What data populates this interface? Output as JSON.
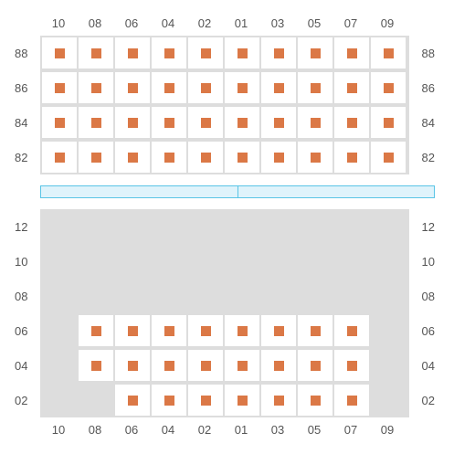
{
  "colors": {
    "seat_fill": "#ffffff",
    "seat_dot": "#db7846",
    "grid_bg": "#dddddd",
    "stage_fill": "#dff3fb",
    "stage_border": "#5ac5e6",
    "label_color": "#555555",
    "page_bg": "#ffffff"
  },
  "layout": {
    "seat_width": 38,
    "seat_height": 34,
    "dot_size": 11,
    "label_fontsize": 13
  },
  "columns": [
    "10",
    "08",
    "06",
    "04",
    "02",
    "01",
    "03",
    "05",
    "07",
    "09"
  ],
  "top_section": {
    "rows": [
      "88",
      "86",
      "84",
      "82"
    ],
    "seats": [
      [
        1,
        1,
        1,
        1,
        1,
        1,
        1,
        1,
        1,
        1
      ],
      [
        1,
        1,
        1,
        1,
        1,
        1,
        1,
        1,
        1,
        1
      ],
      [
        1,
        1,
        1,
        1,
        1,
        1,
        1,
        1,
        1,
        1
      ],
      [
        1,
        1,
        1,
        1,
        1,
        1,
        1,
        1,
        1,
        1
      ]
    ]
  },
  "bottom_section": {
    "rows": [
      "12",
      "10",
      "08",
      "06",
      "04",
      "02"
    ],
    "seats": [
      [
        0,
        0,
        0,
        0,
        0,
        0,
        0,
        0,
        0,
        0
      ],
      [
        0,
        0,
        0,
        0,
        0,
        0,
        0,
        0,
        0,
        0
      ],
      [
        0,
        0,
        0,
        0,
        0,
        0,
        0,
        0,
        0,
        0
      ],
      [
        0,
        1,
        1,
        1,
        1,
        1,
        1,
        1,
        1,
        0
      ],
      [
        0,
        1,
        1,
        1,
        1,
        1,
        1,
        1,
        1,
        0
      ],
      [
        0,
        0,
        1,
        1,
        1,
        1,
        1,
        1,
        1,
        0
      ]
    ]
  }
}
